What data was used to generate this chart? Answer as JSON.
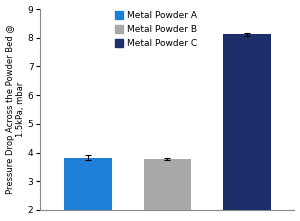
{
  "categories": [
    "Metal Powder A",
    "Metal Powder B",
    "Metal Powder C"
  ],
  "values": [
    3.82,
    3.78,
    8.12
  ],
  "errors": [
    0.08,
    0.04,
    0.05
  ],
  "bar_colors": [
    "#1E7FD9",
    "#A9A9A9",
    "#1C2F6B"
  ],
  "ylabel": "Pressure Drop Across the Powder Bed @\n1.5kPa, mbar",
  "ylim": [
    2,
    9
  ],
  "yticks": [
    2,
    3,
    4,
    5,
    6,
    7,
    8,
    9
  ],
  "legend_labels": [
    "Metal Powder A",
    "Metal Powder B",
    "Metal Powder C"
  ],
  "legend_colors": [
    "#1E7FD9",
    "#A9A9A9",
    "#1C2F6B"
  ],
  "background_color": "#ffffff",
  "bar_width": 0.6,
  "error_capsize": 2,
  "error_color": "black",
  "error_linewidth": 0.8,
  "ylabel_fontsize": 6.0,
  "tick_fontsize": 6.5,
  "legend_fontsize": 6.5
}
